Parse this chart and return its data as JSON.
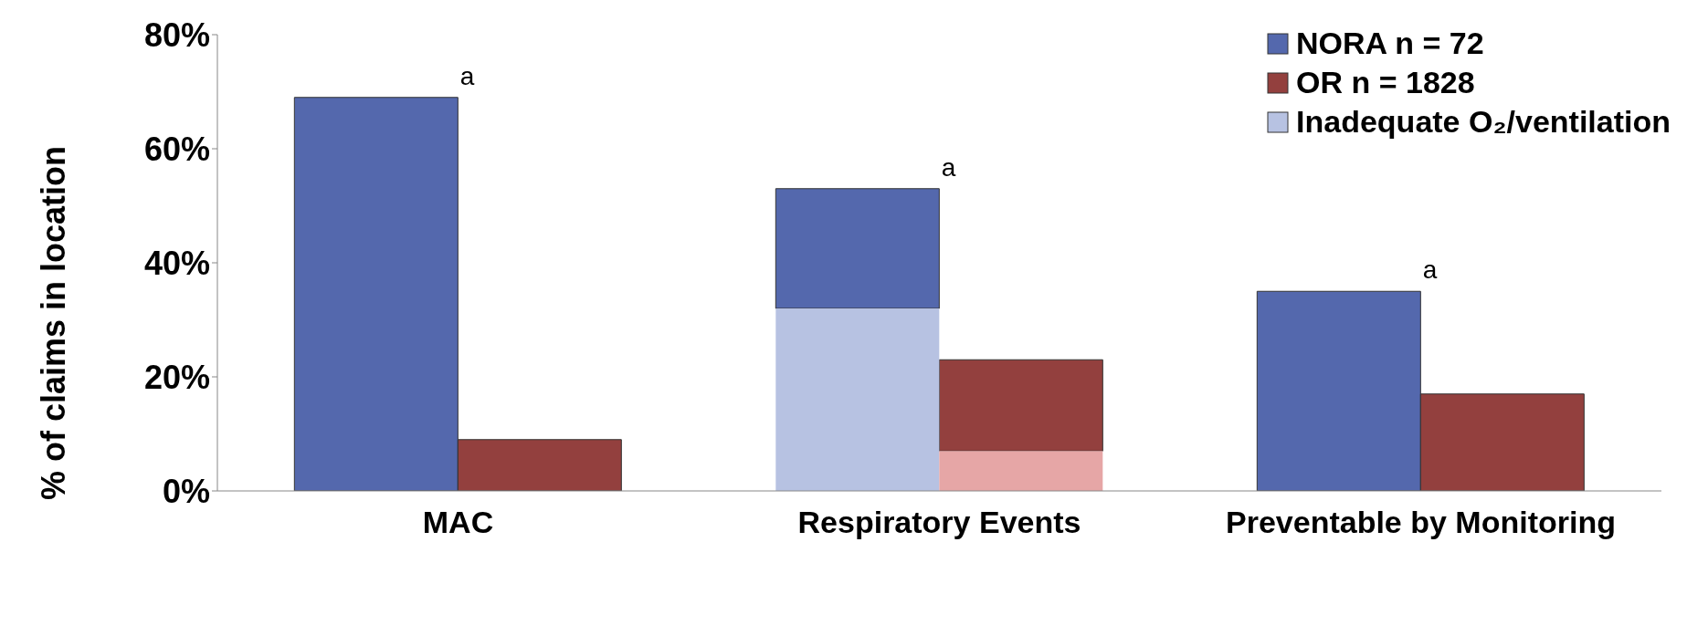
{
  "chart_data": {
    "type": "bar",
    "ylabel": "% of claims in location",
    "categories": [
      "MAC",
      "Respiratory Events",
      "Preventable by Monitoring"
    ],
    "series": [
      {
        "name": "NORA n = 72",
        "color": "#5468ad",
        "values": [
          69,
          21,
          35
        ],
        "base": [
          0,
          32,
          0
        ]
      },
      {
        "name": "OR n = 1828",
        "color": "#93403e",
        "values": [
          9,
          16,
          17
        ],
        "base": [
          0,
          7,
          0
        ]
      },
      {
        "name": "Inadequate O₂/ventilation",
        "color": "#b7c2e2",
        "values": [
          null,
          32,
          null
        ]
      },
      {
        "color": "#e6a6a6",
        "values": [
          null,
          7,
          null
        ]
      }
    ],
    "ylim": [
      0,
      80
    ],
    "yticks": [
      {
        "value": 0,
        "label": "0%"
      },
      {
        "value": 20,
        "label": "20%"
      },
      {
        "value": 40,
        "label": "40%"
      },
      {
        "value": 60,
        "label": "60%"
      },
      {
        "value": 80,
        "label": "80%"
      }
    ],
    "annotations": [
      {
        "text": "a",
        "x": "MAC",
        "y": 69
      },
      {
        "text": "a",
        "x": "Respiratory Events",
        "y": 53
      },
      {
        "text": "a",
        "x": "Preventable by Monitoring",
        "y": 35
      }
    ],
    "legend": "top right"
  }
}
